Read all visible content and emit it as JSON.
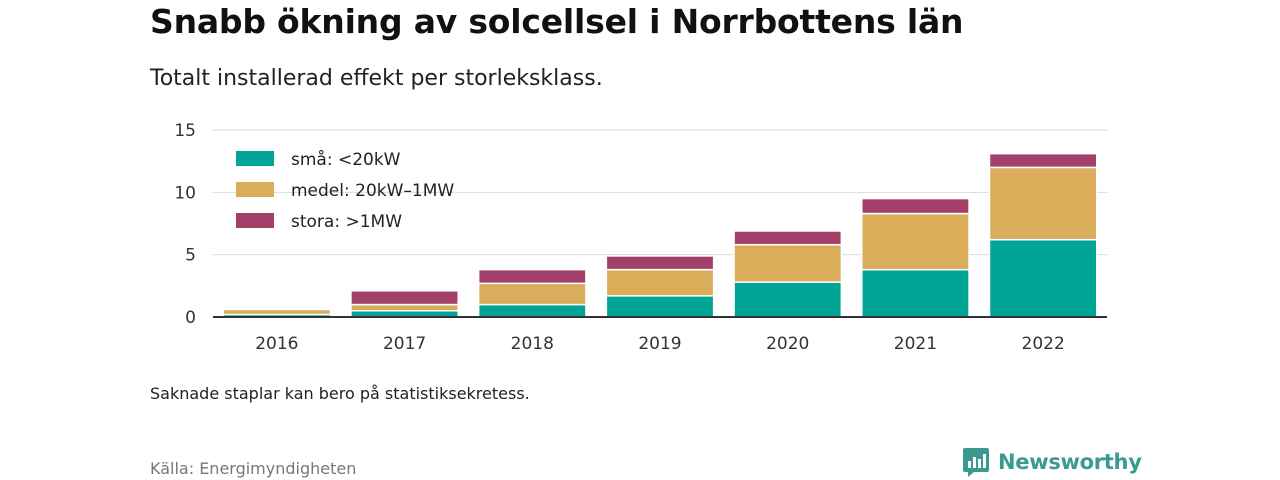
{
  "header": {
    "title": "Snabb ökning av solcellsel i Norrbottens län",
    "subtitle": "Totalt installerad effekt per storleksklass."
  },
  "footer": {
    "note": "Saknade staplar kan bero på statistiksekretess.",
    "source": "Källa: Energimyndigheten",
    "brand": "Newsworthy",
    "brand_color": "#3a9a8f"
  },
  "chart_data": {
    "type": "bar",
    "stacked": true,
    "categories": [
      "2016",
      "2017",
      "2018",
      "2019",
      "2020",
      "2021",
      "2022"
    ],
    "series": [
      {
        "name": "små: <20kW",
        "color": "#00a598",
        "values": [
          0.2,
          0.5,
          1.0,
          1.7,
          2.8,
          3.8,
          6.2
        ]
      },
      {
        "name": "medel: 20kW–1MW",
        "color": "#d9ad5a",
        "values": [
          0.4,
          0.5,
          1.7,
          2.1,
          3.0,
          4.5,
          5.8
        ]
      },
      {
        "name": "stora: >1MW",
        "color": "#a3406a",
        "values": [
          0.0,
          1.1,
          1.1,
          1.1,
          1.1,
          1.2,
          1.1
        ]
      }
    ],
    "yticks": [
      0,
      5,
      10,
      15
    ],
    "ylim": [
      0,
      15
    ],
    "xlabel": "",
    "ylabel": "",
    "grid": true,
    "legend": "top-left"
  }
}
